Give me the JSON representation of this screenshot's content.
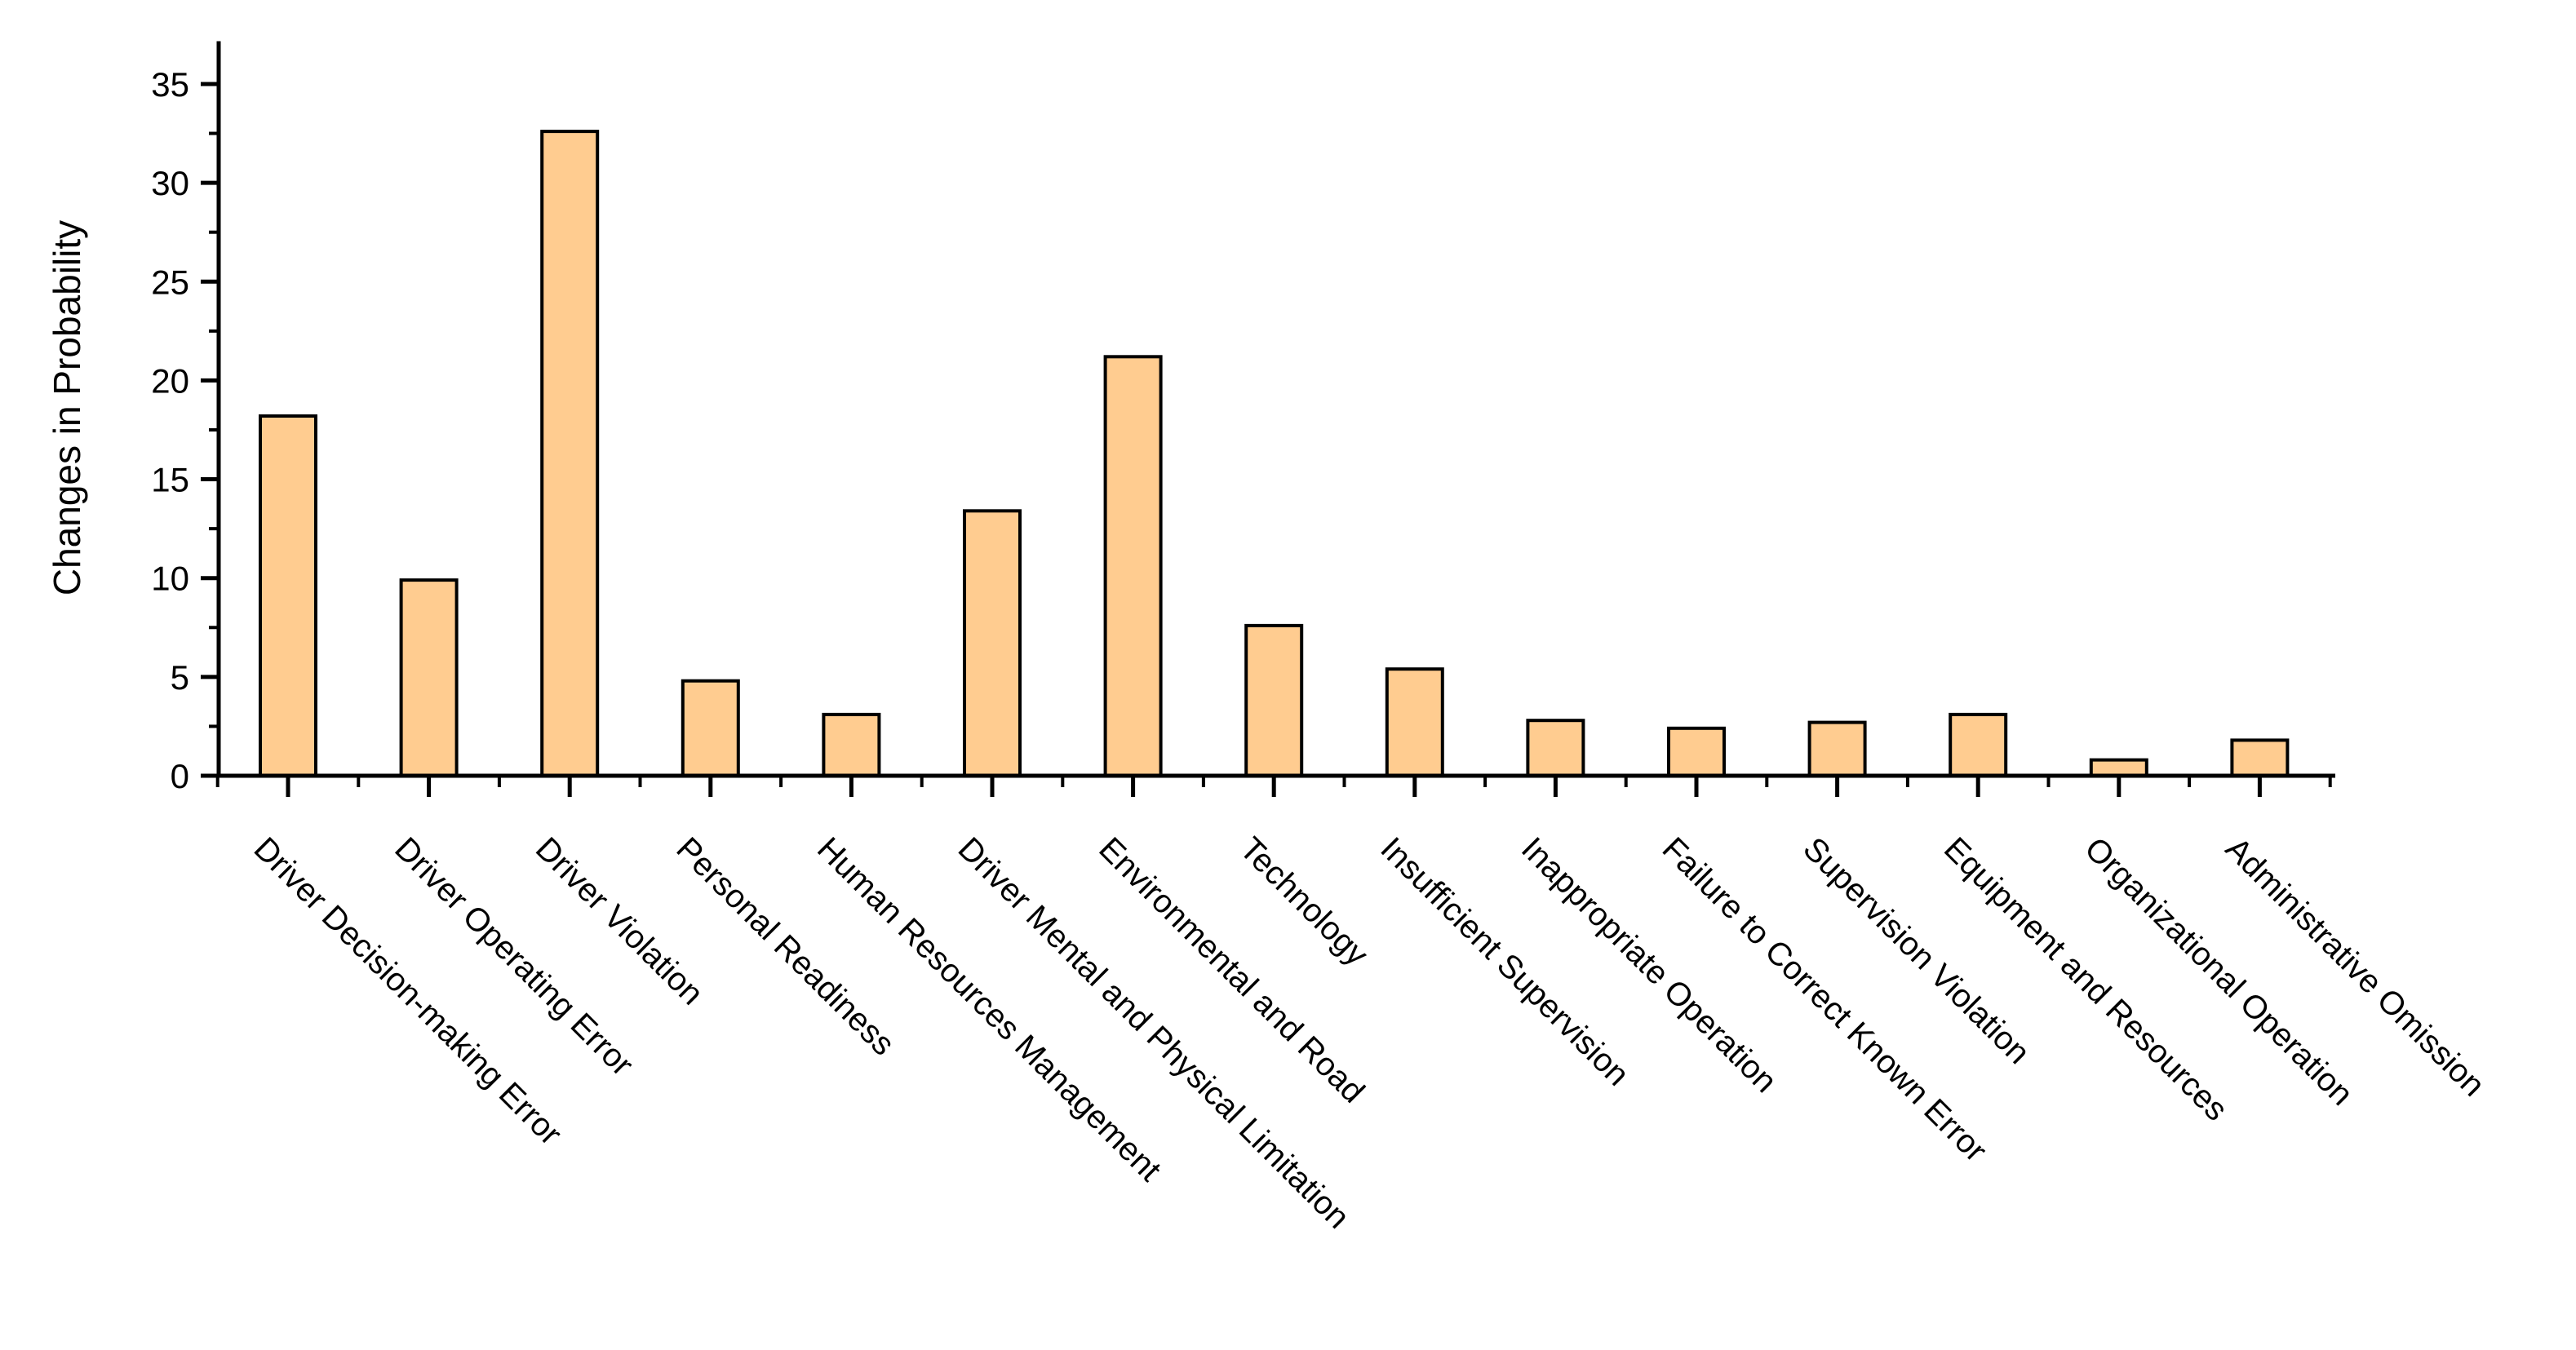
{
  "chart_data": {
    "type": "bar",
    "title": "",
    "xlabel": "",
    "ylabel": "Changes in Probability",
    "ylim": [
      0,
      37
    ],
    "yticks": [
      0,
      5,
      10,
      15,
      20,
      25,
      30,
      35
    ],
    "grid": false,
    "legend": "none",
    "bar_color": "#FFCC90",
    "bar_edge_color": "#000000",
    "categories": [
      "Driver Decision-making Error",
      "Driver Operating Error",
      "Driver Violation",
      "Personal Readiness",
      "Human Resources Management",
      "Driver Mental and Physical Limitation",
      "Environmental and Road",
      "Technology",
      "Insufficient Supervision",
      "Inappropriate Operation",
      "Failure to Correct Known Error",
      "Supervision Violation",
      "Equipment and Resources",
      "Organizational Operation",
      "Administrative Omission"
    ],
    "values": [
      18.2,
      9.9,
      32.6,
      4.8,
      3.1,
      13.4,
      21.2,
      7.6,
      5.4,
      2.8,
      2.4,
      2.7,
      3.1,
      0.8,
      1.8
    ]
  }
}
